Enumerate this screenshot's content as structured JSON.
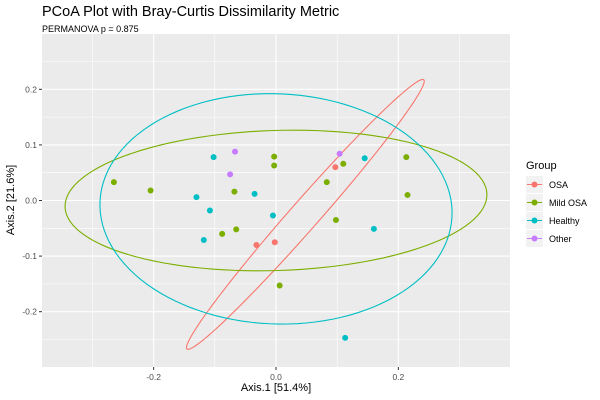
{
  "chart_data": {
    "type": "scatter",
    "title": "PCoA Plot with Bray-Curtis Dissimilarity Metric",
    "subtitle": "PERMANOVA p = 0.875",
    "xlabel": "Axis.1  [51.4%]",
    "ylabel": "Axis.2  [21.6%]",
    "xlim": [
      -0.3825,
      0.3825
    ],
    "ylim": [
      -0.2995,
      0.2995
    ],
    "x_ticks": [
      -0.2,
      0.0,
      0.2
    ],
    "x_tick_labels": [
      "-0.2",
      "0.0",
      "0.2"
    ],
    "y_ticks": [
      -0.2,
      -0.1,
      0.0,
      0.1,
      0.2
    ],
    "y_tick_labels": [
      "-0.2",
      "-0.1",
      "0.0",
      "0.1",
      "0.2"
    ],
    "grid": true,
    "legend": {
      "title": "Group",
      "position": "right"
    },
    "series": [
      {
        "name": "OSA",
        "color": "#F8766D",
        "points": [
          [
            -0.032,
            -0.08
          ],
          [
            -0.002,
            -0.075
          ],
          [
            0.097,
            0.06
          ]
        ],
        "ellipse": {
          "center": [
            0.048,
            -0.025
          ],
          "semi_major": 0.31,
          "semi_minor": 0.0245,
          "angle_deg": 51.4
        }
      },
      {
        "name": "Mild OSA",
        "color": "#7CAE00",
        "points": [
          [
            -0.265,
            0.033
          ],
          [
            -0.205,
            0.018
          ],
          [
            -0.088,
            -0.06
          ],
          [
            -0.068,
            0.016
          ],
          [
            -0.065,
            -0.052
          ],
          [
            -0.003,
            0.079
          ],
          [
            -0.003,
            0.063
          ],
          [
            0.006,
            -0.153
          ],
          [
            0.083,
            0.033
          ],
          [
            0.098,
            -0.035
          ],
          [
            0.11,
            0.066
          ],
          [
            0.213,
            0.078
          ],
          [
            0.215,
            0.01
          ]
        ],
        "ellipse": {
          "center": [
            0.0,
            0.0
          ],
          "semi_major": 0.345,
          "semi_minor": 0.126,
          "angle_deg": 2.0
        }
      },
      {
        "name": "Healthy",
        "color": "#00BFC4",
        "points": [
          [
            -0.13,
            0.006
          ],
          [
            -0.118,
            -0.071
          ],
          [
            -0.108,
            -0.018
          ],
          [
            -0.102,
            0.078
          ],
          [
            -0.035,
            0.012
          ],
          [
            -0.005,
            -0.027
          ],
          [
            0.113,
            -0.247
          ],
          [
            0.145,
            0.076
          ],
          [
            0.16,
            -0.051
          ]
        ],
        "ellipse": {
          "center": [
            0.0,
            -0.015
          ],
          "semi_major": 0.288,
          "semi_minor": 0.207,
          "angle_deg": -3.0
        }
      },
      {
        "name": "Other",
        "color": "#C77CFF",
        "points": [
          [
            -0.075,
            0.047
          ],
          [
            -0.067,
            0.088
          ],
          [
            0.104,
            0.084
          ]
        ]
      }
    ]
  }
}
